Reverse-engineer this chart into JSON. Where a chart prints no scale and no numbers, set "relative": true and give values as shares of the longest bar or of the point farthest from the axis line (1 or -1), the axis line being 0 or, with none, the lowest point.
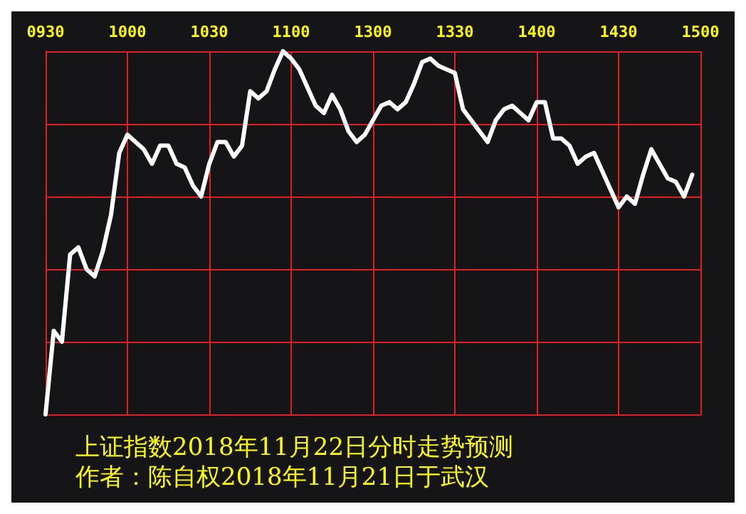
{
  "chart_data": {
    "type": "line",
    "title": "上证指数2018年11月22日分时走势预测",
    "subtitle": "作者：陈自权2018年11月21日于武汉",
    "relative": true,
    "grid": true,
    "categories": [
      "0930",
      null,
      null,
      null,
      null,
      null,
      null,
      null,
      null,
      null,
      "1000",
      null,
      null,
      null,
      null,
      null,
      null,
      null,
      null,
      null,
      "1030",
      null,
      null,
      null,
      null,
      null,
      null,
      null,
      null,
      null,
      "1100",
      null,
      null,
      null,
      null,
      null,
      null,
      null,
      null,
      null,
      "1300",
      null,
      null,
      null,
      null,
      null,
      null,
      null,
      null,
      null,
      "1330",
      null,
      null,
      null,
      null,
      null,
      null,
      null,
      null,
      null,
      "1400",
      null,
      null,
      null,
      null,
      null,
      null,
      null,
      null,
      null,
      "1430",
      null,
      null,
      null,
      null,
      null,
      null,
      null,
      null,
      null,
      "1500"
    ],
    "series": [
      {
        "color": "#ffffff",
        "values": [
          0,
          0.23,
          0.2,
          0.44,
          0.46,
          0.4,
          0.38,
          0.45,
          0.55,
          0.72,
          0.77,
          0.75,
          0.73,
          0.69,
          0.74,
          0.74,
          0.69,
          0.68,
          0.63,
          0.6,
          0.69,
          0.75,
          0.75,
          0.71,
          0.74,
          0.89,
          0.87,
          0.89,
          0.95,
          1,
          0.98,
          0.95,
          0.9,
          0.85,
          0.83,
          0.88,
          0.84,
          0.78,
          0.75,
          0.77,
          0.81,
          0.85,
          0.86,
          0.84,
          0.86,
          0.91,
          0.97,
          0.98,
          0.96,
          0.95,
          0.94,
          0.84,
          0.81,
          0.78,
          0.75,
          0.81,
          0.84,
          0.85,
          0.83,
          0.81,
          0.86,
          0.86,
          0.76,
          0.76,
          0.74,
          0.69,
          0.71,
          0.72,
          0.67,
          0.62,
          0.57,
          0.6,
          0.58,
          0.66,
          0.73,
          0.69,
          0.65,
          0.64,
          0.6,
          0.66,
          null
        ]
      }
    ]
  }
}
